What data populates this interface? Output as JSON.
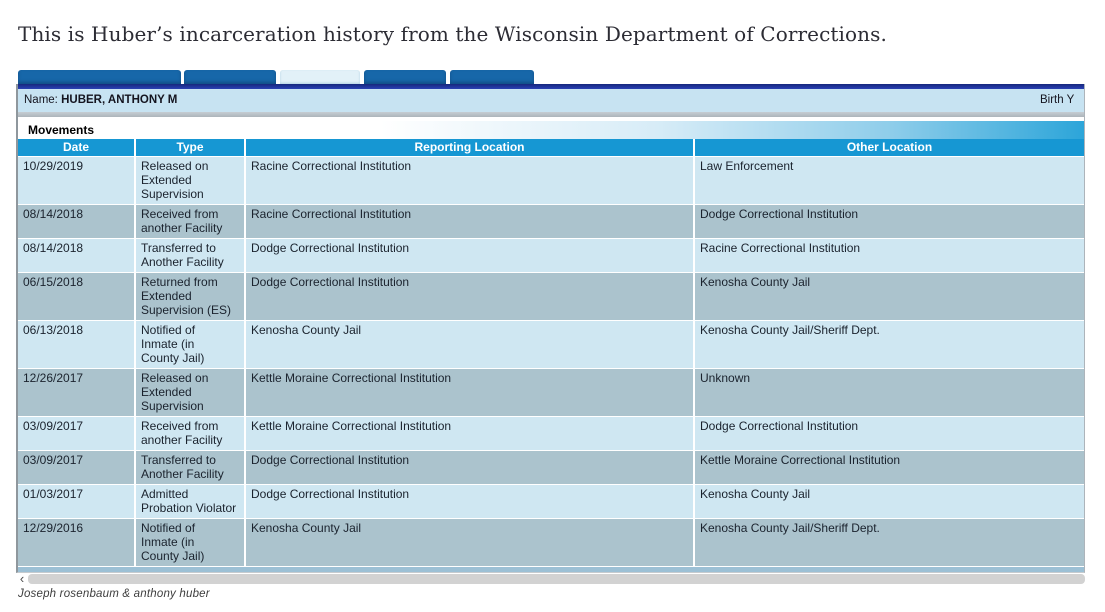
{
  "page": {
    "heading": "This is Huber’s incarceration history from the Wisconsin Department of Corrections.",
    "caption": "Joseph rosenbaum & anthony huber"
  },
  "tabs": {
    "count": 5,
    "active_index": 2,
    "labels_legible": false,
    "items": [
      {
        "active": false
      },
      {
        "active": false
      },
      {
        "active": true
      },
      {
        "active": false
      },
      {
        "active": false
      }
    ]
  },
  "record": {
    "name_label": "Name:",
    "name_value": "HUBER, ANTHONY M",
    "birth_label_truncated": "Birth Y"
  },
  "movements": {
    "section_title": "Movements",
    "columns": [
      "Date",
      "Type",
      "Reporting Location",
      "Other Location"
    ],
    "rows": [
      {
        "date": "10/29/2019",
        "type": "Released on\nExtended\nSupervision",
        "reporting_location": "Racine Correctional Institution",
        "other_location": "Law Enforcement"
      },
      {
        "date": "08/14/2018",
        "type": "Received from\nanother Facility",
        "reporting_location": "Racine Correctional Institution",
        "other_location": "Dodge Correctional Institution"
      },
      {
        "date": "08/14/2018",
        "type": "Transferred to\nAnother Facility",
        "reporting_location": "Dodge Correctional Institution",
        "other_location": "Racine Correctional Institution"
      },
      {
        "date": "06/15/2018",
        "type": "Returned from\nExtended\nSupervision (ES)",
        "reporting_location": "Dodge Correctional Institution",
        "other_location": "Kenosha County Jail"
      },
      {
        "date": "06/13/2018",
        "type": "Notified of\nInmate (in\nCounty Jail)",
        "reporting_location": "Kenosha County Jail",
        "other_location": "Kenosha County Jail/Sheriff Dept."
      },
      {
        "date": "12/26/2017",
        "type": "Released on\nExtended\nSupervision",
        "reporting_location": "Kettle Moraine Correctional Institution",
        "other_location": "Unknown"
      },
      {
        "date": "03/09/2017",
        "type": "Received from\nanother Facility",
        "reporting_location": "Kettle Moraine Correctional Institution",
        "other_location": "Dodge Correctional Institution"
      },
      {
        "date": "03/09/2017",
        "type": "Transferred to\nAnother Facility",
        "reporting_location": "Dodge Correctional Institution",
        "other_location": "Kettle Moraine Correctional Institution"
      },
      {
        "date": "01/03/2017",
        "type": "Admitted\nProbation Violator",
        "reporting_location": "Dodge Correctional Institution",
        "other_location": "Kenosha County Jail"
      },
      {
        "date": "12/29/2016",
        "type": "Notified of\nInmate (in\nCounty Jail)",
        "reporting_location": "Kenosha County Jail",
        "other_location": "Kenosha County Jail/Sheriff Dept."
      }
    ]
  },
  "scrollbar": {
    "left_arrow": "‹"
  },
  "colors": {
    "table_header_blue": "#1697d3",
    "row_light": "#cfe7f2",
    "row_dark": "#abc3cd",
    "name_bar_blue": "#c7e3f2",
    "tab_blue": "#1767a9",
    "tab_active": "#e2f1f8",
    "navy_border": "#1c2f99",
    "movements_gradient_end": "#2ca5d9"
  }
}
